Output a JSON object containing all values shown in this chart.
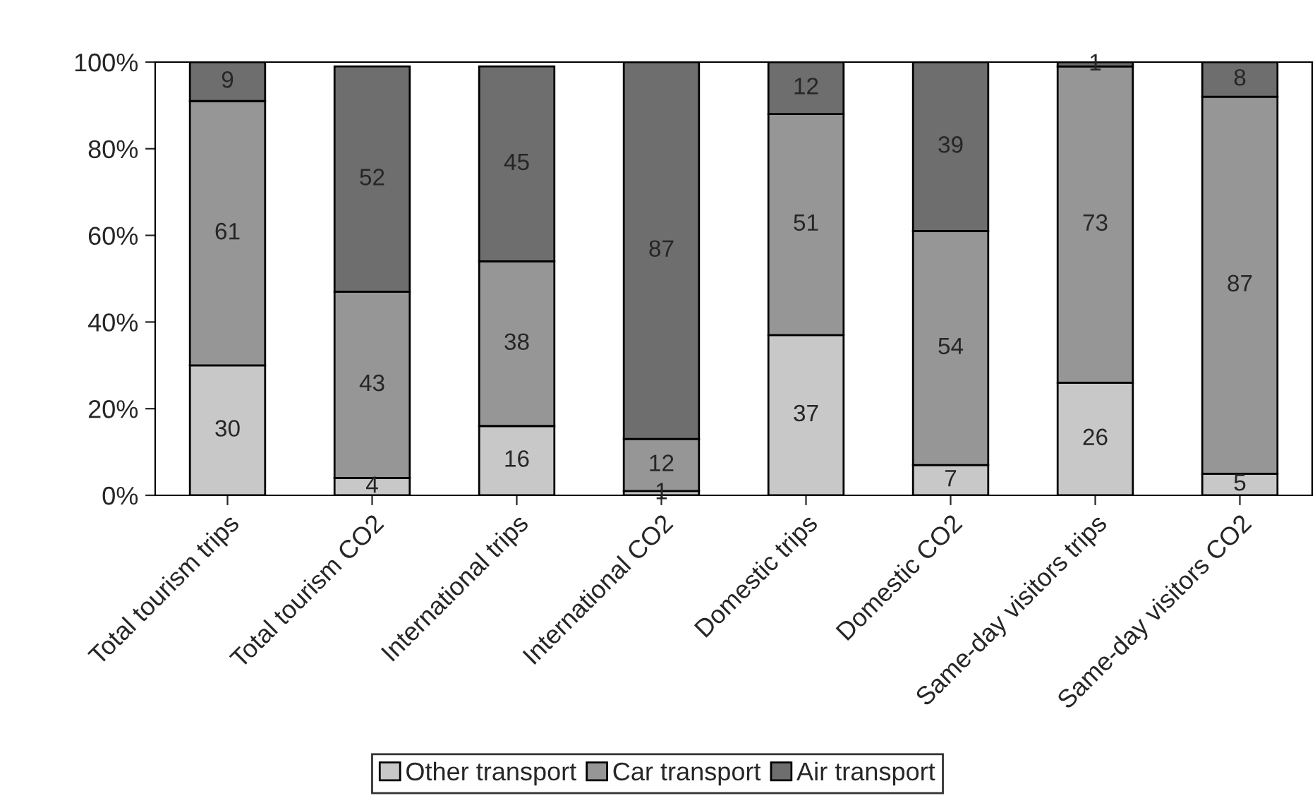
{
  "chart_data": {
    "type": "bar",
    "stacked": true,
    "categories": [
      "Total tourism trips",
      "Total tourism CO2",
      "International trips",
      "International CO2",
      "Domestic trips",
      "Domestic CO2",
      "Same-day visitors trips",
      "Same-day visitors CO2"
    ],
    "series": [
      {
        "name": "Other transport",
        "color": "#c8c8c8",
        "values": [
          30,
          4,
          16,
          1,
          37,
          7,
          26,
          5
        ]
      },
      {
        "name": "Car transport",
        "color": "#969696",
        "values": [
          61,
          43,
          38,
          12,
          51,
          54,
          73,
          87
        ]
      },
      {
        "name": "Air transport",
        "color": "#6e6e6e",
        "values": [
          9,
          52,
          45,
          87,
          12,
          39,
          1,
          8
        ]
      }
    ],
    "ylim": [
      0,
      100
    ],
    "yticks": [
      {
        "value": 0,
        "label": "0%"
      },
      {
        "value": 20,
        "label": "20%"
      },
      {
        "value": 40,
        "label": "40%"
      },
      {
        "value": 60,
        "label": "60%"
      },
      {
        "value": 80,
        "label": "80%"
      },
      {
        "value": 100,
        "label": "100%"
      }
    ],
    "data_labels": true,
    "grid": false,
    "legend": "bottom"
  }
}
